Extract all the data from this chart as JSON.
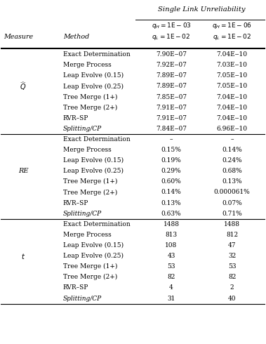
{
  "title": "Single Link Unreliability",
  "col_headers_row1": [
    "$q_H =1\\mathrm{E}-03$",
    "$q_H =1\\mathrm{E}-06$"
  ],
  "col_headers_row2": [
    "$q_L =1\\mathrm{E}-02$",
    "$q_L =1\\mathrm{E}-02$"
  ],
  "measure_label": "Measure",
  "method_label": "Method",
  "sections": [
    {
      "measure": "$\\widehat{Q}$",
      "measure_italic": true,
      "rows": [
        [
          "Exact Determination",
          "7.90E‒07",
          "7.04E‒10",
          false
        ],
        [
          "Merge Process",
          "7.92E‒07",
          "7.03E‒10",
          false
        ],
        [
          "Leap Evolve (0.15)",
          "7.89E‒07",
          "7.05E‒10",
          false
        ],
        [
          "Leap Evolve (0.25)",
          "7.89E‒07",
          "7.05E‒10",
          false
        ],
        [
          "Tree Merge (1+)",
          "7.85E‒07",
          "7.04E‒10",
          false
        ],
        [
          "Tree Merge (2+)",
          "7.91E‒07",
          "7.04E‒10",
          false
        ],
        [
          "RVR–SP",
          "7.91E‒07",
          "7.04E‒10",
          false
        ],
        [
          "Splitting/CP",
          "7.84E‒07",
          "6.96E‒10",
          true
        ]
      ]
    },
    {
      "measure": "RE",
      "measure_italic": false,
      "rows": [
        [
          "Exact Determination",
          "–",
          "–",
          false
        ],
        [
          "Merge Process",
          "0.15%",
          "0.14%",
          false
        ],
        [
          "Leap Evolve (0.15)",
          "0.19%",
          "0.24%",
          false
        ],
        [
          "Leap Evolve (0.25)",
          "0.29%",
          "0.68%",
          false
        ],
        [
          "Tree Merge (1+)",
          "0.60%",
          "0.13%",
          false
        ],
        [
          "Tree Merge (2+)",
          "0.14%",
          "0.000061%",
          false
        ],
        [
          "RVR–SP",
          "0.13%",
          "0.07%",
          false
        ],
        [
          "Splitting/CP",
          "0.63%",
          "0.71%",
          true
        ]
      ]
    },
    {
      "measure": "$t$",
      "measure_italic": true,
      "rows": [
        [
          "Exact Determination",
          "1488",
          "1488",
          false
        ],
        [
          "Merge Process",
          "813",
          "812",
          false
        ],
        [
          "Leap Evolve (0.15)",
          "108",
          "47",
          false
        ],
        [
          "Leap Evolve (0.25)",
          "43",
          "32",
          false
        ],
        [
          "Tree Merge (1+)",
          "53",
          "53",
          false
        ],
        [
          "Tree Merge (2+)",
          "82",
          "82",
          false
        ],
        [
          "RVR–SP",
          "4",
          "2",
          false
        ],
        [
          "Splitting/CP",
          "31",
          "40",
          true
        ]
      ]
    }
  ]
}
